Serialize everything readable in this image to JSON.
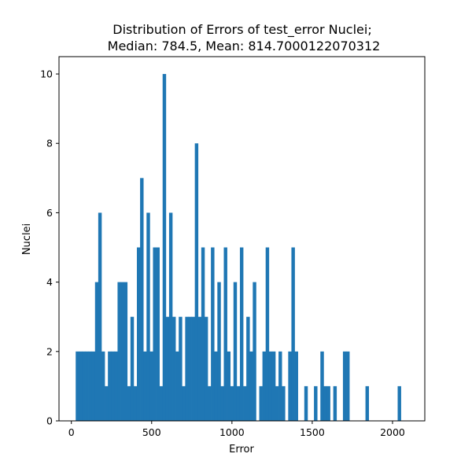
{
  "chart_data": {
    "type": "bar",
    "title_lines": [
      "Distribution of Errors of test_error Nuclei;",
      "Median: 784.5, Mean: 814.7000122070312"
    ],
    "xlabel": "Error",
    "ylabel": "Nuclei",
    "xlim": [
      -77,
      2201
    ],
    "ylim": [
      0,
      10.5
    ],
    "xticks": [
      0,
      500,
      1000,
      1500,
      2000
    ],
    "yticks": [
      0,
      2,
      4,
      6,
      8,
      10
    ],
    "bin_start": 27,
    "bin_width": 20.05,
    "bar_color": "#1f77b4",
    "counts": [
      2,
      2,
      2,
      2,
      2,
      2,
      4,
      6,
      2,
      1,
      2,
      2,
      2,
      4,
      4,
      4,
      1,
      3,
      1,
      5,
      7,
      2,
      6,
      2,
      5,
      5,
      1,
      10,
      3,
      6,
      3,
      2,
      3,
      1,
      3,
      3,
      3,
      8,
      3,
      5,
      3,
      1,
      5,
      2,
      4,
      1,
      5,
      2,
      1,
      4,
      1,
      5,
      1,
      3,
      2,
      4,
      0,
      1,
      2,
      5,
      2,
      2,
      1,
      2,
      1,
      0,
      2,
      5,
      2,
      0,
      0,
      1,
      0,
      0,
      1,
      0,
      2,
      1,
      1,
      0,
      1,
      0,
      0,
      2,
      2,
      0,
      0,
      0,
      0,
      0,
      1,
      0,
      0,
      0,
      0,
      0,
      0,
      0,
      0,
      0,
      1
    ]
  }
}
